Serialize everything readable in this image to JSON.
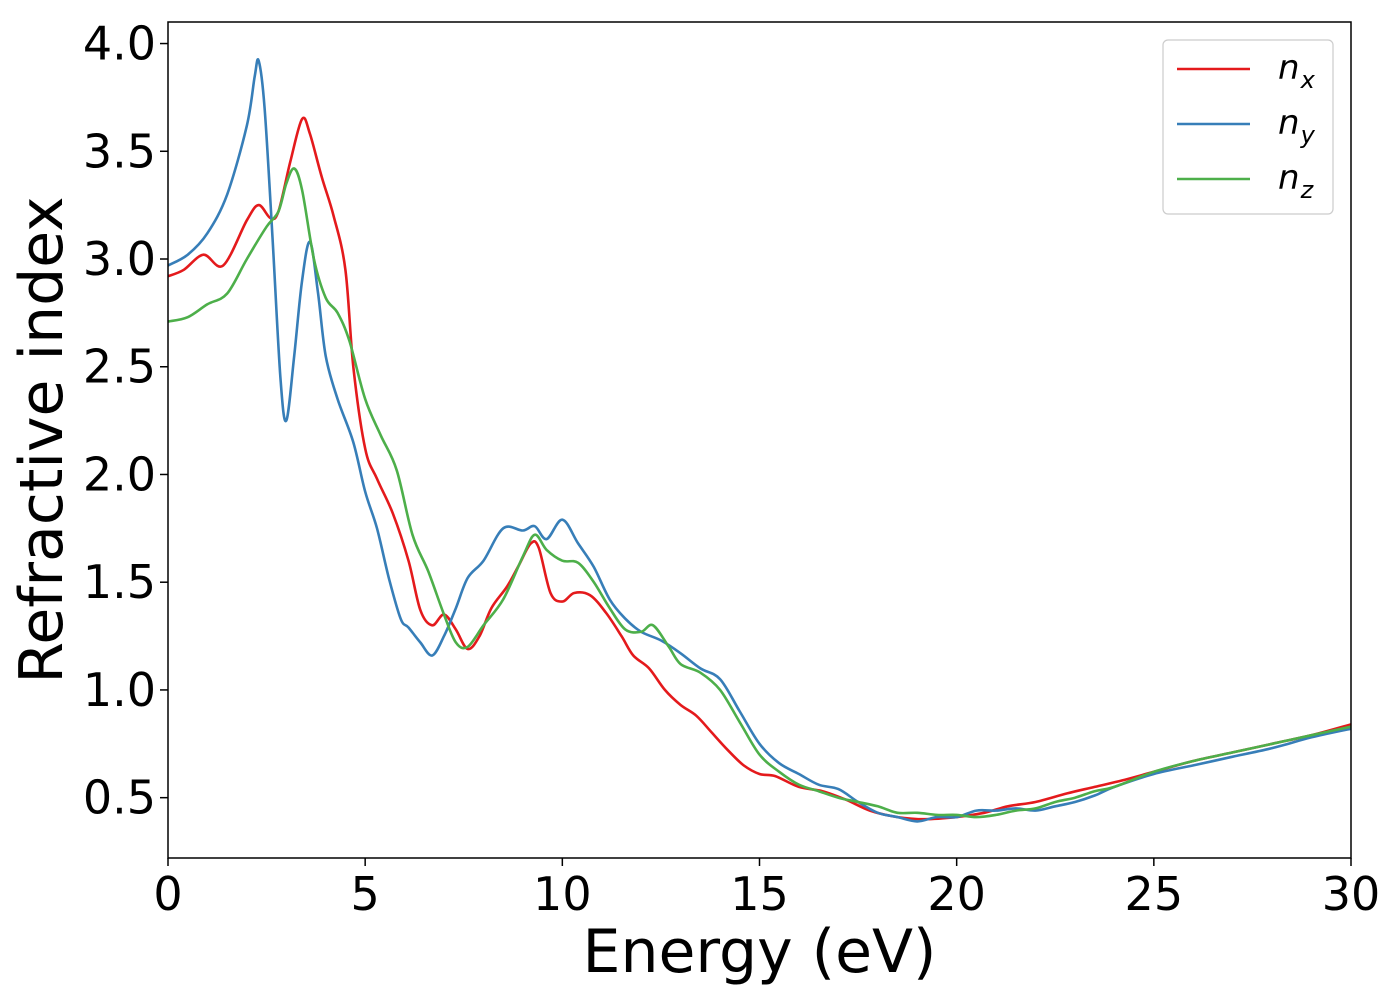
{
  "chart_data": {
    "type": "line",
    "title": "",
    "xlabel": "Energy (eV)",
    "ylabel": "Refractive index",
    "xlim": [
      0,
      30
    ],
    "ylim": [
      0.22,
      4.1
    ],
    "xticks": [
      0,
      5,
      10,
      15,
      20,
      25,
      30
    ],
    "yticks": [
      0.5,
      1.0,
      1.5,
      2.0,
      2.5,
      3.0,
      3.5,
      4.0
    ],
    "xtick_labels": [
      "0",
      "5",
      "10",
      "15",
      "20",
      "25",
      "30"
    ],
    "ytick_labels": [
      "0.5",
      "1.0",
      "1.5",
      "2.0",
      "2.5",
      "3.0",
      "3.5",
      "4.0"
    ],
    "grid": false,
    "legend_position": "top-right",
    "series": [
      {
        "name": "n_x",
        "label_base": "n",
        "label_sub": "x",
        "color": "#e41a1c",
        "x": [
          0,
          0.4,
          0.9,
          1.4,
          2.0,
          2.3,
          2.6,
          2.8,
          3.1,
          3.4,
          3.6,
          3.9,
          4.2,
          4.5,
          4.7,
          5.0,
          5.3,
          5.7,
          6.1,
          6.4,
          6.7,
          7.0,
          7.3,
          7.6,
          7.9,
          8.2,
          8.6,
          8.9,
          9.2,
          9.4,
          9.7,
          10.0,
          10.3,
          10.7,
          11.1,
          11.5,
          11.8,
          12.2,
          12.6,
          13.0,
          13.4,
          13.8,
          14.2,
          14.6,
          15.0,
          15.4,
          16.0,
          16.6,
          17.2,
          17.8,
          18.5,
          19.2,
          20.0,
          20.7,
          21.3,
          22.0,
          22.8,
          23.5,
          24.2,
          25.0,
          26.0,
          27.0,
          28.0,
          29.0,
          30.0
        ],
        "y": [
          2.92,
          2.95,
          3.02,
          2.97,
          3.18,
          3.25,
          3.19,
          3.22,
          3.45,
          3.65,
          3.58,
          3.38,
          3.2,
          2.95,
          2.5,
          2.12,
          1.98,
          1.82,
          1.6,
          1.37,
          1.3,
          1.35,
          1.28,
          1.19,
          1.25,
          1.38,
          1.48,
          1.58,
          1.68,
          1.66,
          1.45,
          1.41,
          1.45,
          1.44,
          1.36,
          1.25,
          1.16,
          1.1,
          1.0,
          0.93,
          0.88,
          0.8,
          0.72,
          0.65,
          0.61,
          0.6,
          0.55,
          0.53,
          0.49,
          0.44,
          0.41,
          0.4,
          0.41,
          0.43,
          0.46,
          0.48,
          0.52,
          0.55,
          0.58,
          0.62,
          0.67,
          0.71,
          0.75,
          0.79,
          0.84
        ]
      },
      {
        "name": "n_y",
        "label_base": "n",
        "label_sub": "y",
        "color": "#377eb8",
        "x": [
          0,
          0.5,
          1.0,
          1.5,
          2.0,
          2.2,
          2.3,
          2.45,
          2.65,
          2.85,
          3.0,
          3.2,
          3.4,
          3.6,
          3.8,
          4.0,
          4.3,
          4.7,
          5.0,
          5.3,
          5.6,
          5.9,
          6.1,
          6.4,
          6.7,
          7.0,
          7.3,
          7.6,
          8.0,
          8.5,
          9.0,
          9.3,
          9.6,
          10.0,
          10.4,
          10.8,
          11.2,
          11.6,
          12.0,
          12.5,
          13.0,
          13.5,
          14.0,
          14.5,
          15.0,
          15.5,
          16.0,
          16.5,
          17.0,
          17.5,
          18.0,
          18.5,
          19.0,
          19.5,
          20.0,
          20.5,
          21.0,
          21.5,
          22.0,
          22.5,
          23.0,
          23.5,
          24.0,
          25.0,
          26.0,
          27.0,
          28.0,
          29.0,
          30.0
        ],
        "y": [
          2.97,
          3.02,
          3.12,
          3.3,
          3.62,
          3.85,
          3.92,
          3.7,
          3.1,
          2.45,
          2.25,
          2.55,
          2.9,
          3.08,
          2.85,
          2.55,
          2.35,
          2.15,
          1.92,
          1.75,
          1.52,
          1.33,
          1.29,
          1.22,
          1.16,
          1.25,
          1.38,
          1.52,
          1.6,
          1.75,
          1.74,
          1.76,
          1.7,
          1.79,
          1.68,
          1.57,
          1.42,
          1.33,
          1.27,
          1.23,
          1.17,
          1.1,
          1.05,
          0.9,
          0.75,
          0.66,
          0.61,
          0.56,
          0.54,
          0.48,
          0.43,
          0.41,
          0.39,
          0.41,
          0.41,
          0.44,
          0.44,
          0.45,
          0.44,
          0.46,
          0.48,
          0.51,
          0.55,
          0.61,
          0.65,
          0.69,
          0.73,
          0.78,
          0.82
        ]
      },
      {
        "name": "n_z",
        "label_base": "n",
        "label_sub": "z",
        "color": "#4daf4a",
        "x": [
          0,
          0.5,
          1.0,
          1.5,
          2.0,
          2.5,
          2.8,
          3.0,
          3.2,
          3.4,
          3.7,
          4.0,
          4.3,
          4.6,
          5.0,
          5.4,
          5.8,
          6.2,
          6.6,
          7.0,
          7.3,
          7.6,
          8.0,
          8.5,
          9.0,
          9.3,
          9.6,
          10.0,
          10.4,
          10.8,
          11.2,
          11.6,
          12.0,
          12.3,
          12.7,
          13.0,
          13.5,
          14.0,
          14.5,
          15.0,
          15.5,
          16.0,
          16.5,
          17.0,
          17.5,
          18.0,
          18.5,
          19.0,
          19.5,
          20.0,
          20.5,
          21.0,
          21.5,
          22.0,
          22.5,
          23.0,
          23.5,
          24.0,
          25.0,
          26.0,
          27.0,
          28.0,
          29.0,
          30.0
        ],
        "y": [
          2.71,
          2.73,
          2.79,
          2.84,
          3.0,
          3.15,
          3.22,
          3.35,
          3.42,
          3.32,
          3.0,
          2.82,
          2.75,
          2.62,
          2.35,
          2.18,
          2.02,
          1.72,
          1.55,
          1.35,
          1.22,
          1.2,
          1.3,
          1.42,
          1.62,
          1.72,
          1.65,
          1.6,
          1.59,
          1.5,
          1.38,
          1.28,
          1.27,
          1.3,
          1.2,
          1.12,
          1.08,
          1.0,
          0.85,
          0.7,
          0.62,
          0.56,
          0.53,
          0.5,
          0.48,
          0.46,
          0.43,
          0.43,
          0.42,
          0.42,
          0.41,
          0.42,
          0.44,
          0.45,
          0.48,
          0.5,
          0.53,
          0.55,
          0.62,
          0.67,
          0.71,
          0.75,
          0.79,
          0.83
        ]
      }
    ]
  }
}
